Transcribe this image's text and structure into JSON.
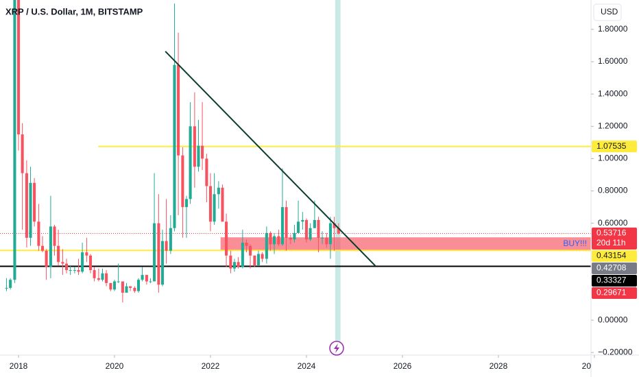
{
  "chart_data": {
    "type": "candlestick",
    "title": "XRP / U.S. Dollar, 1M, BITSTAMP",
    "currency": "USD",
    "up_color": "#22ab94",
    "down_color": "#f7525f",
    "grid": false,
    "xlim": [
      2017.614,
      2029.93
    ],
    "xticks": [
      2018,
      2020,
      2022,
      2024,
      2026,
      2028,
      {
        "value": 2030,
        "label": "20"
      }
    ],
    "ylim": [
      -0.216,
      1.982
    ],
    "yticks": [
      {
        "value": 1.8,
        "label": "1.80000"
      },
      {
        "value": 1.6,
        "label": "1.60000"
      },
      {
        "value": 1.4,
        "label": "1.40000"
      },
      {
        "value": 1.2,
        "label": "1.20000"
      },
      {
        "value": 1.0,
        "label": "1.00000"
      },
      {
        "value": 0.8,
        "label": "0.80000"
      },
      {
        "value": 0.6,
        "label": "0.60000"
      },
      {
        "value": 0,
        "label": "0.00000"
      },
      {
        "value": -0.2,
        "label": "−0.20000"
      }
    ],
    "x": [
      2017.75,
      2017.83,
      2017.92,
      2018.0,
      2018.08,
      2018.17,
      2018.25,
      2018.33,
      2018.42,
      2018.5,
      2018.58,
      2018.67,
      2018.75,
      2018.83,
      2018.92,
      2019.0,
      2019.08,
      2019.17,
      2019.25,
      2019.33,
      2019.42,
      2019.5,
      2019.58,
      2019.67,
      2019.75,
      2019.83,
      2019.92,
      2020.0,
      2020.08,
      2020.17,
      2020.25,
      2020.33,
      2020.42,
      2020.5,
      2020.58,
      2020.67,
      2020.75,
      2020.83,
      2020.92,
      2021.0,
      2021.08,
      2021.17,
      2021.25,
      2021.33,
      2021.42,
      2021.5,
      2021.58,
      2021.67,
      2021.75,
      2021.83,
      2021.92,
      2022.0,
      2022.08,
      2022.17,
      2022.25,
      2022.33,
      2022.42,
      2022.5,
      2022.58,
      2022.67,
      2022.75,
      2022.83,
      2022.92,
      2023.0,
      2023.08,
      2023.17,
      2023.25,
      2023.33,
      2023.42,
      2023.5,
      2023.58,
      2023.67,
      2023.75,
      2023.83,
      2023.92,
      2024.0,
      2024.08,
      2024.17,
      2024.25,
      2024.33,
      2024.42,
      2024.5,
      2024.58,
      2024.67
    ],
    "open": [
      0.2,
      0.2,
      0.25,
      2.3,
      1.15,
      0.91,
      0.51,
      0.85,
      0.61,
      0.46,
      0.43,
      0.33,
      0.58,
      0.46,
      0.36,
      0.35,
      0.31,
      0.31,
      0.31,
      0.3,
      0.42,
      0.4,
      0.31,
      0.26,
      0.25,
      0.29,
      0.23,
      0.19,
      0.24,
      0.24,
      0.17,
      0.21,
      0.2,
      0.18,
      0.25,
      0.28,
      0.24,
      0.24,
      0.6,
      0.22,
      0.49,
      0.43,
      0.57,
      1.58,
      1.02,
      0.7,
      0.75,
      1.2,
      0.95,
      1.08,
      1.0,
      0.83,
      0.61,
      0.78,
      0.82,
      0.61,
      0.4,
      0.32,
      0.36,
      0.33,
      0.48,
      0.46,
      0.4,
      0.34,
      0.41,
      0.38,
      0.54,
      0.47,
      0.52,
      0.47,
      0.7,
      0.51,
      0.5,
      0.54,
      0.61,
      0.62,
      0.5,
      0.57,
      0.62,
      0.51,
      0.51,
      0.47,
      0.6,
      0.57
    ],
    "high": [
      0.26,
      0.26,
      2.85,
      3.31,
      1.22,
      0.99,
      0.95,
      0.88,
      0.72,
      0.52,
      0.44,
      0.77,
      0.59,
      0.56,
      0.44,
      0.38,
      0.34,
      0.33,
      0.38,
      0.48,
      0.51,
      0.41,
      0.33,
      0.32,
      0.32,
      0.31,
      0.23,
      0.25,
      0.35,
      0.24,
      0.23,
      0.21,
      0.21,
      0.26,
      0.33,
      0.28,
      0.26,
      0.91,
      0.78,
      0.56,
      0.75,
      0.65,
      1.96,
      1.78,
      1.07,
      0.77,
      1.35,
      1.41,
      1.24,
      1.35,
      1.03,
      0.91,
      0.91,
      0.86,
      0.84,
      0.66,
      0.43,
      0.38,
      0.39,
      0.56,
      0.5,
      0.47,
      0.4,
      0.43,
      0.42,
      0.58,
      0.55,
      0.54,
      0.56,
      0.94,
      0.74,
      0.53,
      0.59,
      0.74,
      0.67,
      0.63,
      0.6,
      0.74,
      0.64,
      0.55,
      0.54,
      0.64,
      0.64,
      0.6
    ],
    "low": [
      0.18,
      0.19,
      0.23,
      1.05,
      0.56,
      0.45,
      0.46,
      0.58,
      0.43,
      0.42,
      0.25,
      0.26,
      0.4,
      0.34,
      0.28,
      0.29,
      0.28,
      0.29,
      0.28,
      0.29,
      0.36,
      0.29,
      0.24,
      0.24,
      0.24,
      0.21,
      0.18,
      0.18,
      0.23,
      0.11,
      0.17,
      0.18,
      0.17,
      0.17,
      0.24,
      0.22,
      0.23,
      0.24,
      0.17,
      0.21,
      0.35,
      0.41,
      0.55,
      0.65,
      0.51,
      0.51,
      0.72,
      0.82,
      0.92,
      0.93,
      0.73,
      0.55,
      0.59,
      0.69,
      0.61,
      0.33,
      0.29,
      0.3,
      0.32,
      0.32,
      0.42,
      0.32,
      0.33,
      0.34,
      0.36,
      0.35,
      0.43,
      0.41,
      0.46,
      0.46,
      0.43,
      0.47,
      0.48,
      0.54,
      0.56,
      0.48,
      0.49,
      0.57,
      0.42,
      0.47,
      0.45,
      0.38,
      0.43,
      0.53
    ],
    "close": [
      0.2,
      0.25,
      2.3,
      1.15,
      0.91,
      0.51,
      0.85,
      0.61,
      0.46,
      0.43,
      0.33,
      0.58,
      0.46,
      0.36,
      0.35,
      0.31,
      0.31,
      0.31,
      0.3,
      0.42,
      0.4,
      0.31,
      0.26,
      0.25,
      0.29,
      0.23,
      0.19,
      0.24,
      0.24,
      0.17,
      0.21,
      0.2,
      0.18,
      0.25,
      0.28,
      0.24,
      0.24,
      0.6,
      0.22,
      0.49,
      0.43,
      0.57,
      1.58,
      1.02,
      0.7,
      0.75,
      1.2,
      0.95,
      1.08,
      1.0,
      0.83,
      0.61,
      0.78,
      0.82,
      0.61,
      0.4,
      0.32,
      0.36,
      0.33,
      0.48,
      0.46,
      0.4,
      0.34,
      0.41,
      0.38,
      0.54,
      0.47,
      0.52,
      0.47,
      0.7,
      0.51,
      0.5,
      0.54,
      0.61,
      0.62,
      0.5,
      0.57,
      0.62,
      0.51,
      0.51,
      0.47,
      0.6,
      0.57,
      0.53716
    ],
    "highlight": {
      "x_from": 2024.6,
      "x_to": 2024.71,
      "color": "#b2dfdb"
    },
    "zone": {
      "label": "BUY!!!",
      "x_from": 2022.21,
      "top": 0.513,
      "bottom": 0.43,
      "color": "#f7525f"
    },
    "trendline": {
      "x": [
        2021.06,
        2025.44
      ],
      "y": [
        1.664,
        0.335
      ],
      "color": "#0b3d2e"
    },
    "levels": [
      {
        "value": 1.07535,
        "color": "#ffeb3b",
        "x_from": 2019.66
      },
      {
        "value": 0.53716,
        "color": "#f23645",
        "style": "dotted"
      },
      {
        "value": 0.43154,
        "color": "#ffeb3b"
      },
      {
        "value": 0.33327,
        "color": "#000000"
      }
    ],
    "price_labels": [
      {
        "value": 1.07535,
        "bg": "#ffeb3b",
        "fg": "#131722"
      },
      {
        "value": 0.53716,
        "bg": "#f23645",
        "fg": "#ffffff",
        "countdown": "20d 11h"
      },
      {
        "value": 0.43154,
        "bg": "#ffeb3b",
        "fg": "#131722"
      },
      {
        "value": 0.42708,
        "bg": "#787b86",
        "fg": "#ffffff"
      },
      {
        "value": 0.33327,
        "bg": "#000000",
        "fg": "#ffffff"
      },
      {
        "value": 0.29671,
        "bg": "#f23645",
        "fg": "#ffffff"
      }
    ]
  }
}
